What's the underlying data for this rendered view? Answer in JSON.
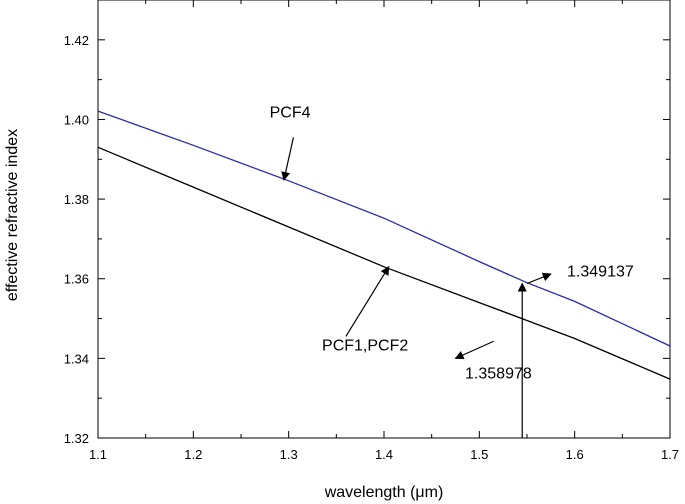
{
  "chart_data": {
    "type": "line",
    "title": "",
    "xlabel": "wavelength (μm)",
    "ylabel": "effective refractive  index",
    "xlim": [
      1.1,
      1.7
    ],
    "ylim": [
      1.32,
      1.43
    ],
    "xticks": [
      1.1,
      1.2,
      1.3,
      1.4,
      1.5,
      1.6,
      1.7
    ],
    "yticks": [
      1.32,
      1.34,
      1.36,
      1.38,
      1.4,
      1.42
    ],
    "grid": false,
    "legend": "none",
    "series": [
      {
        "id": "pcf4",
        "color": "#2a2aaa",
        "x": [
          1.1,
          1.2,
          1.3,
          1.4,
          1.5,
          1.55,
          1.6,
          1.7
        ],
        "y": [
          1.4021,
          1.3935,
          1.3846,
          1.3752,
          1.3643,
          1.359,
          1.3543,
          1.3431
        ]
      },
      {
        "id": "pcf1-pcf2",
        "color": "#000000",
        "x": [
          1.1,
          1.2,
          1.3,
          1.4,
          1.5,
          1.55,
          1.6,
          1.7
        ],
        "y": [
          1.393,
          1.383,
          1.373,
          1.363,
          1.354,
          1.3495,
          1.345,
          1.3348
        ]
      }
    ],
    "annotations": [
      {
        "id": "pcf4-label",
        "text": "PCF4",
        "text_x": 1.28,
        "text_y": 1.4005,
        "arrow_from": [
          1.305,
          1.3955
        ],
        "arrow_to": [
          1.295,
          1.3848
        ]
      },
      {
        "id": "pcf12-label",
        "text": "PCF1,PCF2",
        "text_x": 1.335,
        "text_y": 1.342,
        "arrow_from": [
          1.36,
          1.3455
        ],
        "arrow_to": [
          1.405,
          1.363
        ]
      },
      {
        "id": "val-1349137",
        "text": "1.349137",
        "text_x": 1.592,
        "text_y": 1.3605,
        "arrow_from": [
          1.55,
          1.3588
        ],
        "arrow_to": [
          1.575,
          1.3612
        ]
      },
      {
        "id": "val-1358978",
        "text": "1.358978",
        "text_x": 1.485,
        "text_y": 1.335,
        "arrow_from": [
          1.515,
          1.3443
        ],
        "arrow_to": [
          1.475,
          1.34
        ]
      }
    ],
    "marker_line": {
      "x": 1.545,
      "y_from": 1.32,
      "y_to": 1.3588
    }
  }
}
